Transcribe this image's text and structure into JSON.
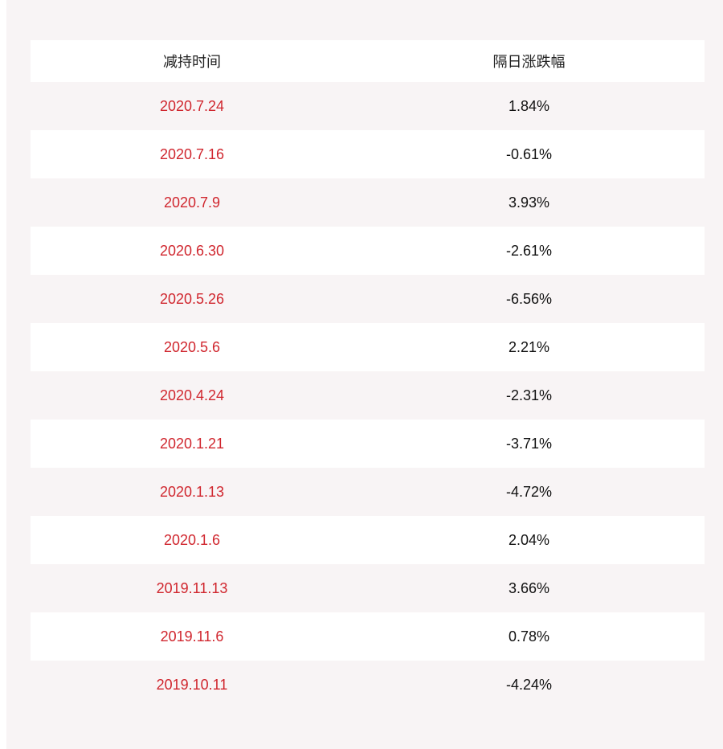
{
  "table": {
    "headers": [
      "减持时间",
      "隔日涨跌幅"
    ],
    "rows": [
      {
        "date": "2020.7.24",
        "change": "1.84%"
      },
      {
        "date": "2020.7.16",
        "change": "-0.61%"
      },
      {
        "date": "2020.7.9",
        "change": "3.93%"
      },
      {
        "date": "2020.6.30",
        "change": "-2.61%"
      },
      {
        "date": "2020.5.26",
        "change": "-6.56%"
      },
      {
        "date": "2020.5.6",
        "change": "2.21%"
      },
      {
        "date": "2020.4.24",
        "change": "-2.31%"
      },
      {
        "date": "2020.1.21",
        "change": "-3.71%"
      },
      {
        "date": "2020.1.13",
        "change": "-4.72%"
      },
      {
        "date": "2020.1.6",
        "change": "2.04%"
      },
      {
        "date": "2019.11.13",
        "change": "3.66%"
      },
      {
        "date": "2019.11.6",
        "change": "0.78%"
      },
      {
        "date": "2019.10.11",
        "change": "-4.24%"
      }
    ]
  },
  "colors": {
    "date_text": "#d0262e",
    "value_text": "#111111",
    "stripe": "#f8f4f5",
    "white": "#ffffff"
  }
}
